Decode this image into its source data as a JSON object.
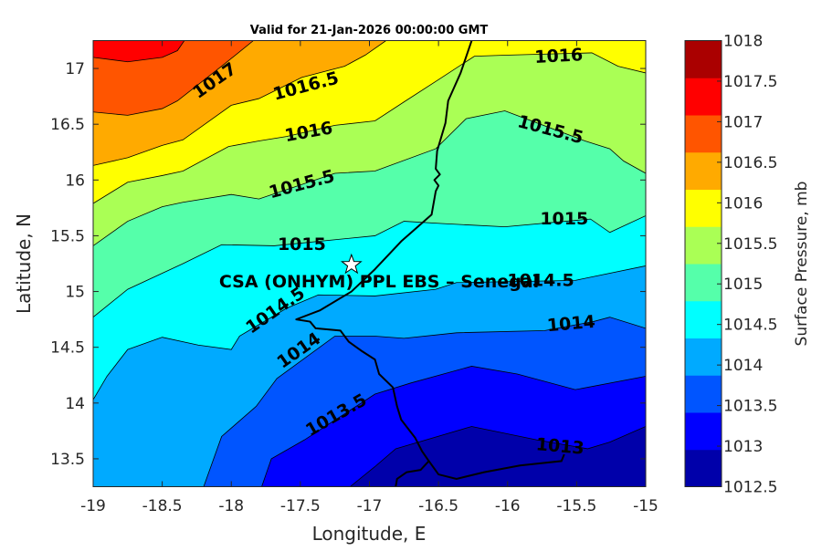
{
  "chart_data": {
    "type": "contour",
    "title": "Valid for 21-Jan-2026 00:00:00 GMT",
    "xlabel": "Longitude, E",
    "ylabel": "Latitude, N",
    "xlim": [
      -19,
      -15
    ],
    "ylim": [
      13.25,
      17.25
    ],
    "xticks": [
      "-19",
      "-18.5",
      "-18",
      "-17.5",
      "-17",
      "-16.5",
      "-16",
      "-15.5",
      "-15"
    ],
    "xtick_values": [
      -19,
      -18.5,
      -18,
      -17.5,
      -17,
      -16.5,
      -16,
      -15.5,
      -15
    ],
    "yticks": [
      "13.5",
      "14",
      "14.5",
      "15",
      "15.5",
      "16",
      "16.5",
      "17"
    ],
    "ytick_values": [
      13.5,
      14,
      14.5,
      15,
      15.5,
      16,
      16.5,
      17
    ],
    "background_color": "#0000aa",
    "contours": [
      {
        "level": 1013,
        "color": "#0000ff",
        "points": [
          [
            -17.14,
            13.25
          ],
          [
            -16.96,
            13.43
          ],
          [
            -16.81,
            13.59
          ],
          [
            -16.26,
            13.79
          ],
          [
            -15.79,
            13.67
          ],
          [
            -15.42,
            13.59
          ],
          [
            -15.26,
            13.65
          ],
          [
            -15,
            13.79
          ]
        ]
      },
      {
        "level": 1013.5,
        "color": "#0055ff",
        "points": [
          [
            -17.78,
            13.25
          ],
          [
            -17.71,
            13.5
          ],
          [
            -17.47,
            13.67
          ],
          [
            -16.96,
            14.08
          ],
          [
            -16.7,
            14.18
          ],
          [
            -16.26,
            14.33
          ],
          [
            -15.93,
            14.26
          ],
          [
            -15.51,
            14.12
          ],
          [
            -15,
            14.24
          ]
        ]
      },
      {
        "level": 1014,
        "color": "#00aaff",
        "points": [
          [
            -18.2,
            13.25
          ],
          [
            -18.07,
            13.7
          ],
          [
            -17.82,
            13.97
          ],
          [
            -17.67,
            14.22
          ],
          [
            -17.25,
            14.6
          ],
          [
            -16.96,
            14.6
          ],
          [
            -16.75,
            14.58
          ],
          [
            -16.37,
            14.63
          ],
          [
            -15.73,
            14.65
          ],
          [
            -15.38,
            14.73
          ],
          [
            -15.26,
            14.77
          ],
          [
            -15,
            14.67
          ]
        ]
      },
      {
        "level": 1014.5,
        "color": "#00ffff",
        "points": [
          [
            -19,
            14.03
          ],
          [
            -18.9,
            14.24
          ],
          [
            -18.75,
            14.48
          ],
          [
            -18.5,
            14.59
          ],
          [
            -18.24,
            14.52
          ],
          [
            -18,
            14.48
          ],
          [
            -17.94,
            14.6
          ],
          [
            -17.6,
            14.85
          ],
          [
            -17.37,
            14.97
          ],
          [
            -16.96,
            14.96
          ],
          [
            -16.52,
            15.02
          ],
          [
            -16.37,
            15.08
          ],
          [
            -15.51,
            15.1
          ],
          [
            -15,
            15.23
          ]
        ]
      },
      {
        "level": 1015,
        "color": "#55ffaa",
        "points": [
          [
            -19,
            14.77
          ],
          [
            -18.75,
            15.02
          ],
          [
            -18.35,
            15.25
          ],
          [
            -18.07,
            15.42
          ],
          [
            -17.69,
            15.41
          ],
          [
            -16.96,
            15.5
          ],
          [
            -16.75,
            15.63
          ],
          [
            -16.48,
            15.61
          ],
          [
            -16.02,
            15.58
          ],
          [
            -15.4,
            15.65
          ],
          [
            -15.26,
            15.53
          ],
          [
            -15,
            15.68
          ]
        ]
      },
      {
        "level": 1015.5,
        "color": "#aaff55",
        "points": [
          [
            -19,
            15.41
          ],
          [
            -18.75,
            15.63
          ],
          [
            -18.5,
            15.76
          ],
          [
            -18.35,
            15.8
          ],
          [
            -18,
            15.87
          ],
          [
            -17.8,
            15.83
          ],
          [
            -17.25,
            16.06
          ],
          [
            -16.96,
            16.08
          ],
          [
            -16.52,
            16.28
          ],
          [
            -16.3,
            16.55
          ],
          [
            -16.02,
            16.62
          ],
          [
            -15.44,
            16.35
          ],
          [
            -15.26,
            16.28
          ],
          [
            -15.16,
            16.17
          ],
          [
            -15,
            16.06
          ]
        ]
      },
      {
        "level": 1016,
        "color": "#ffff00",
        "points": [
          [
            -19,
            15.79
          ],
          [
            -18.75,
            15.98
          ],
          [
            -18.5,
            16.04
          ],
          [
            -18.35,
            16.08
          ],
          [
            -18.02,
            16.3
          ],
          [
            -17.8,
            16.35
          ],
          [
            -17.6,
            16.39
          ],
          [
            -17.25,
            16.49
          ],
          [
            -16.96,
            16.53
          ],
          [
            -16.75,
            16.7
          ],
          [
            -16.5,
            16.9
          ],
          [
            -16.24,
            17.11
          ],
          [
            -15.99,
            17.12
          ],
          [
            -15.39,
            17.14
          ],
          [
            -15.2,
            17.02
          ],
          [
            -15,
            16.96
          ]
        ]
      },
      {
        "level": 1016.5,
        "color": "#ffaa00",
        "points": [
          [
            -19,
            16.13
          ],
          [
            -18.75,
            16.2
          ],
          [
            -18.5,
            16.31
          ],
          [
            -18.35,
            16.36
          ],
          [
            -18,
            16.67
          ],
          [
            -17.8,
            16.73
          ],
          [
            -17.49,
            16.92
          ],
          [
            -17.18,
            17.02
          ],
          [
            -17.03,
            17.12
          ],
          [
            -16.88,
            17.25
          ]
        ]
      },
      {
        "level": 1017,
        "color": "#ff5500",
        "points": [
          [
            -19,
            16.61
          ],
          [
            -18.75,
            16.58
          ],
          [
            -18.5,
            16.64
          ],
          [
            -18.39,
            16.71
          ],
          [
            -18.07,
            17.02
          ],
          [
            -17.84,
            17.25
          ]
        ]
      },
      {
        "level": 1017.5,
        "color": "#ff0000",
        "points": [
          [
            -19,
            17.1
          ],
          [
            -18.75,
            17.06
          ],
          [
            -18.5,
            17.1
          ],
          [
            -18.39,
            17.16
          ],
          [
            -18.34,
            17.25
          ]
        ]
      }
    ],
    "contour_labels": [
      {
        "text": "1017",
        "lon": -18.12,
        "lat": 16.89
      },
      {
        "text": "1016.5",
        "lon": -17.46,
        "lat": 16.84
      },
      {
        "text": "1016",
        "lon": -17.44,
        "lat": 16.43
      },
      {
        "text": "1015.5",
        "lon": -17.49,
        "lat": 15.96
      },
      {
        "text": "1015",
        "lon": -17.49,
        "lat": 15.42
      },
      {
        "text": "1016",
        "lon": -15.63,
        "lat": 17.11
      },
      {
        "text": "1015.5",
        "lon": -15.69,
        "lat": 16.45
      },
      {
        "text": "1015",
        "lon": -15.59,
        "lat": 15.65
      },
      {
        "text": "1014.5",
        "lon": -17.68,
        "lat": 14.83
      },
      {
        "text": "1014.5",
        "lon": -15.76,
        "lat": 15.1
      },
      {
        "text": "1014",
        "lon": -17.51,
        "lat": 14.47
      },
      {
        "text": "1014",
        "lon": -15.54,
        "lat": 14.71
      },
      {
        "text": "1013.5",
        "lon": -17.24,
        "lat": 13.89
      },
      {
        "text": "1013",
        "lon": -15.62,
        "lat": 13.61
      }
    ],
    "coastline": [
      [
        -16.26,
        17.25
      ],
      [
        -16.34,
        16.96
      ],
      [
        -16.43,
        16.71
      ],
      [
        -16.45,
        16.51
      ],
      [
        -16.51,
        16.26
      ],
      [
        -16.52,
        16.1
      ],
      [
        -16.49,
        16.05
      ],
      [
        -16.53,
        16.0
      ],
      [
        -16.5,
        15.95
      ],
      [
        -16.52,
        15.9
      ],
      [
        -16.55,
        15.69
      ],
      [
        -16.77,
        15.45
      ],
      [
        -16.96,
        15.2
      ],
      [
        -17.13,
        15.0
      ],
      [
        -17.36,
        14.83
      ],
      [
        -17.53,
        14.75
      ],
      [
        -17.43,
        14.73
      ],
      [
        -17.39,
        14.67
      ],
      [
        -17.21,
        14.65
      ],
      [
        -17.15,
        14.55
      ],
      [
        -17.06,
        14.47
      ],
      [
        -16.96,
        14.39
      ],
      [
        -16.93,
        14.26
      ],
      [
        -16.83,
        14.14
      ],
      [
        -16.8,
        13.97
      ],
      [
        -16.77,
        13.85
      ],
      [
        -16.67,
        13.69
      ],
      [
        -16.62,
        13.57
      ],
      [
        -16.57,
        13.48
      ],
      [
        -16.63,
        13.4
      ],
      [
        -16.73,
        13.38
      ],
      [
        -16.8,
        13.32
      ],
      [
        -16.81,
        13.25
      ]
    ],
    "river": [
      [
        -16.57,
        13.48
      ],
      [
        -16.5,
        13.36
      ],
      [
        -16.37,
        13.32
      ],
      [
        -16.17,
        13.38
      ],
      [
        -15.91,
        13.44
      ],
      [
        -15.61,
        13.48
      ],
      [
        -15.59,
        13.54
      ]
    ],
    "station": {
      "name": "CSA (ONHYM) PPL EBS  – Senegal",
      "lon": -17.13,
      "lat": 15.24
    },
    "colorbar": {
      "label": "Surface Pressure, mb",
      "ticks": [
        "1012.5",
        "1013",
        "1013.5",
        "1014",
        "1014.5",
        "1015",
        "1015.5",
        "1016",
        "1016.5",
        "1017",
        "1017.5",
        "1018"
      ],
      "colors": [
        "#0000aa",
        "#0000ff",
        "#0055ff",
        "#00aaff",
        "#00ffff",
        "#55ffaa",
        "#aaff55",
        "#ffff00",
        "#ffaa00",
        "#ff5500",
        "#ff0000",
        "#aa0000"
      ]
    }
  }
}
